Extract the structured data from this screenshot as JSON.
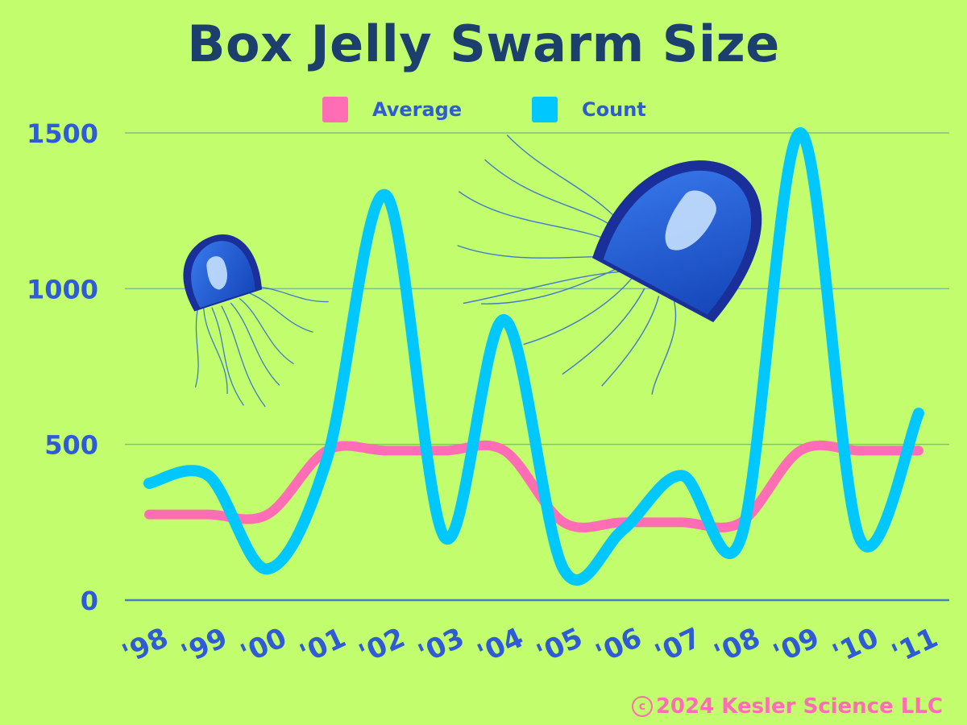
{
  "chart_data": {
    "type": "line",
    "title": "Box Jelly Swarm Size",
    "categories": [
      "'98",
      "'99",
      "'00",
      "'01",
      "'02",
      "'03",
      "'04",
      "'05",
      "'06",
      "'07",
      "'08",
      "'09",
      "'10",
      "'11"
    ],
    "series": [
      {
        "name": "Average",
        "color": "#ff6eb4",
        "values": [
          275,
          275,
          275,
          480,
          480,
          480,
          480,
          250,
          250,
          250,
          250,
          480,
          480,
          480
        ]
      },
      {
        "name": "Count",
        "color": "#00c8ff",
        "values": [
          375,
          400,
          100,
          450,
          1300,
          200,
          900,
          100,
          225,
          400,
          200,
          1500,
          200,
          600
        ]
      }
    ],
    "yticks": [
      0,
      500,
      1000,
      1500
    ],
    "ylim": [
      0,
      1500
    ],
    "grid": true,
    "legend_position": "top-center",
    "xlabel": "",
    "ylabel": ""
  },
  "colors": {
    "background": "#c2fd6d",
    "title": "#1d3f6e",
    "tick_labels": "#2f5bd6",
    "gridline": "#7fbf8a",
    "copyright": "#ff6eb4"
  },
  "legend": {
    "average_label": "Average",
    "count_label": "Count"
  },
  "footer": {
    "copyright_symbol": "c",
    "copyright_text": "2024 Kesler Science LLC"
  },
  "illustrations": [
    "box-jellyfish",
    "box-jellyfish"
  ]
}
